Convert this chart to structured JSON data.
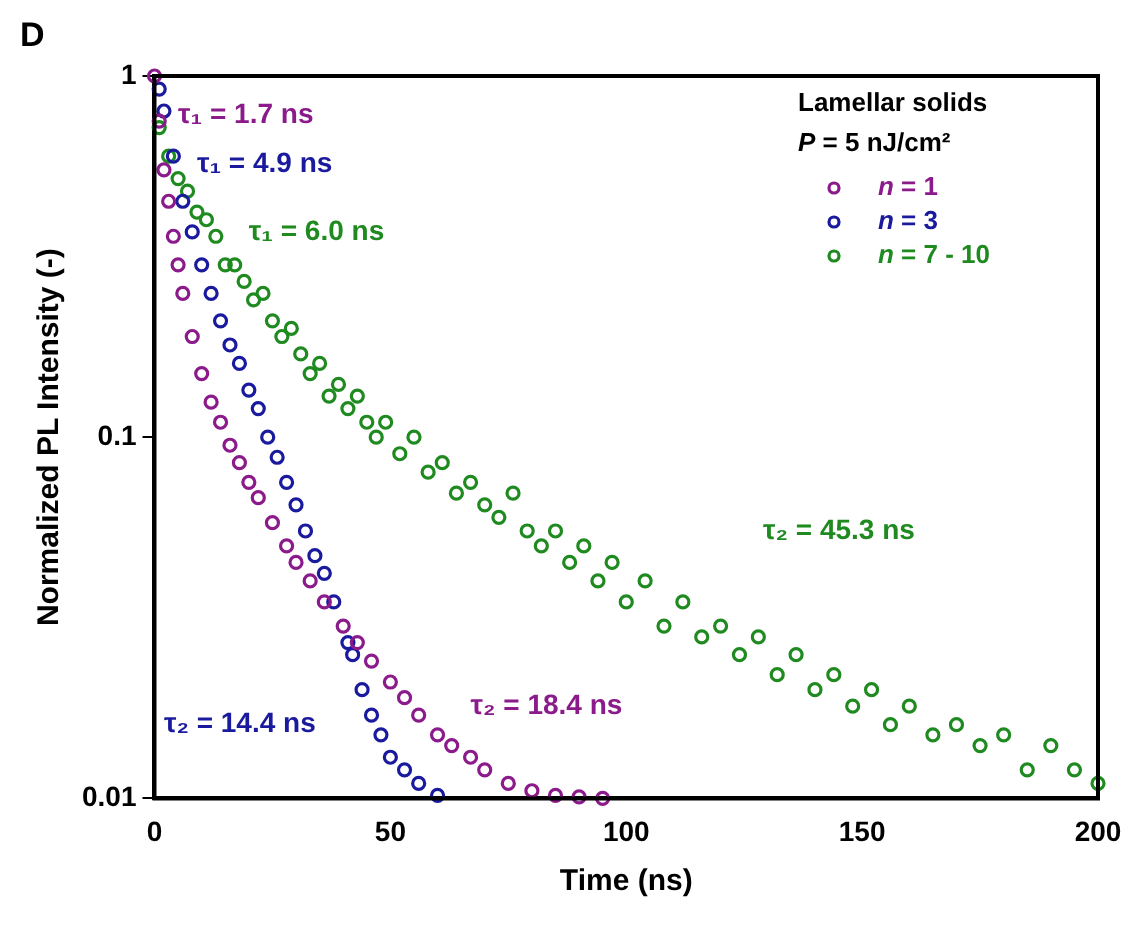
{
  "chart_data": {
    "type": "scatter",
    "xlabel": "Time (ns)",
    "ylabel": "Normalized PL Intensity (-)",
    "log": "y",
    "xlim": [
      0,
      200
    ],
    "xticks": [
      0,
      50,
      100,
      150,
      200
    ],
    "ylim": [
      0.01,
      1
    ],
    "yticks": [
      0.01,
      0.1,
      1
    ],
    "grid": false,
    "legend": "top right",
    "legend_title": "Lamellar solids",
    "marker": "circle",
    "annotations": [
      "D",
      "P = 5 nJ/cm²",
      "τ₁ = 1.7 ns",
      "τ₁ = 4.9 ns",
      "τ₁ = 6.0 ns",
      "τ₂ = 14.4 ns",
      "τ₂ = 18.4 ns",
      "τ₂ = 45.3 ns"
    ],
    "series": [
      {
        "name": "n = 1",
        "color": "#8b1a8b",
        "x": [
          0,
          1,
          2,
          3,
          4,
          5,
          6,
          8,
          10,
          12,
          14,
          16,
          18,
          20,
          22,
          25,
          28,
          30,
          33,
          36,
          40,
          43,
          46,
          50,
          53,
          56,
          60,
          63,
          67,
          70,
          75,
          80,
          85,
          90,
          95
        ],
        "values": [
          1,
          0.75,
          0.55,
          0.45,
          0.36,
          0.3,
          0.25,
          0.19,
          0.15,
          0.125,
          0.11,
          0.095,
          0.085,
          0.075,
          0.068,
          0.058,
          0.05,
          0.045,
          0.04,
          0.035,
          0.03,
          0.027,
          0.024,
          0.021,
          0.019,
          0.017,
          0.015,
          0.014,
          0.013,
          0.012,
          0.011,
          0.0105,
          0.0102,
          0.0101,
          0.01
        ]
      },
      {
        "name": "n = 3",
        "color": "#1a1a9e",
        "x": [
          1,
          2,
          4,
          6,
          8,
          10,
          12,
          14,
          16,
          18,
          20,
          22,
          24,
          26,
          28,
          30,
          32,
          34,
          36,
          38,
          41,
          42,
          44,
          46,
          48,
          50,
          53,
          56,
          60
        ],
        "values": [
          0.92,
          0.8,
          0.6,
          0.45,
          0.37,
          0.3,
          0.25,
          0.21,
          0.18,
          0.16,
          0.135,
          0.12,
          0.1,
          0.088,
          0.075,
          0.065,
          0.055,
          0.047,
          0.042,
          0.035,
          0.027,
          0.025,
          0.02,
          0.017,
          0.015,
          0.013,
          0.012,
          0.011,
          0.0102
        ]
      },
      {
        "name": "n = 7 - 10",
        "color": "#1f8a1f",
        "x": [
          1,
          3,
          5,
          7,
          9,
          11,
          13,
          15,
          17,
          19,
          21,
          23,
          25,
          27,
          29,
          31,
          33,
          35,
          37,
          39,
          41,
          43,
          45,
          47,
          49,
          52,
          55,
          58,
          61,
          64,
          67,
          70,
          73,
          76,
          79,
          82,
          85,
          88,
          91,
          94,
          97,
          100,
          104,
          108,
          112,
          116,
          120,
          124,
          128,
          132,
          136,
          140,
          144,
          148,
          152,
          156,
          160,
          165,
          170,
          175,
          180,
          185,
          190,
          195,
          200
        ],
        "values": [
          0.72,
          0.6,
          0.52,
          0.48,
          0.42,
          0.4,
          0.36,
          0.3,
          0.3,
          0.27,
          0.24,
          0.25,
          0.21,
          0.19,
          0.2,
          0.17,
          0.15,
          0.16,
          0.13,
          0.14,
          0.12,
          0.13,
          0.11,
          0.1,
          0.11,
          0.09,
          0.1,
          0.08,
          0.085,
          0.07,
          0.075,
          0.065,
          0.06,
          0.07,
          0.055,
          0.05,
          0.055,
          0.045,
          0.05,
          0.04,
          0.045,
          0.035,
          0.04,
          0.03,
          0.035,
          0.028,
          0.03,
          0.025,
          0.028,
          0.022,
          0.025,
          0.02,
          0.022,
          0.018,
          0.02,
          0.016,
          0.018,
          0.015,
          0.016,
          0.014,
          0.015,
          0.012,
          0.014,
          0.012,
          0.011
        ]
      }
    ]
  }
}
